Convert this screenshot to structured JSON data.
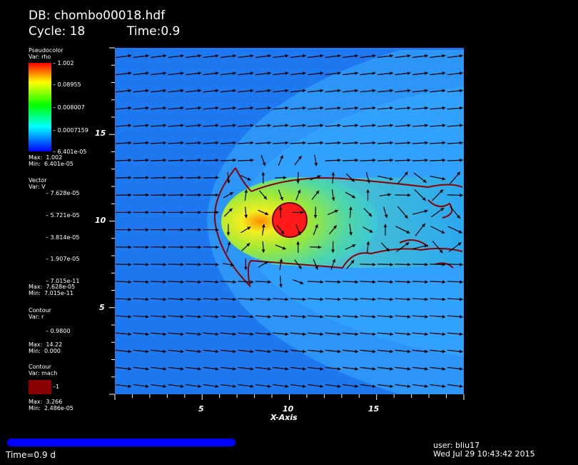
{
  "header": {
    "db_line": "DB: chombo00018.hdf",
    "cycle_label": "Cycle: 18",
    "time_label": "Time:0.9"
  },
  "legend_pseudocolor": {
    "title": "Pseudocolor",
    "var": "Var: rho",
    "ticks": [
      "1.002",
      "0.08955",
      "0.008007",
      "0.0007159",
      "6.401e-05"
    ],
    "max": "Max:  1.002",
    "min": "Min:  6.401e-05"
  },
  "legend_vector": {
    "title": "Vector",
    "var": "Var: V",
    "ticks": [
      "7.628e-05",
      "5.721e-05",
      "3.814e-05",
      "1.907e-05",
      "7.015e-11"
    ],
    "max": "Max:  7.628e-05",
    "min": "Min:  7.015e-11"
  },
  "legend_contour_r": {
    "title": "Contour",
    "var": "Var: r",
    "level": "0.9800",
    "max": "Max:  14.22",
    "min": "Min:  0.000",
    "color": "#ffffff"
  },
  "legend_contour_mach": {
    "title": "Contour",
    "var": "Var: mach",
    "level": "1",
    "max": "Max:  3.266",
    "min": "Min:  2.486e-05",
    "color": "#8b0000"
  },
  "axes": {
    "xlabel": "X-Axis",
    "xticks": [
      "5",
      "10",
      "15"
    ],
    "yticks": [
      "15",
      "10",
      "5"
    ],
    "xlim": [
      0,
      20
    ],
    "ylim": [
      0,
      20
    ]
  },
  "footer": {
    "time": "Time=0.9 d",
    "user": "user: bliu17",
    "date": "Wed Jul 29 10:43:42 2015",
    "progress_fraction": 1.0
  },
  "colors": {
    "background": "#000000",
    "field": "#1e78f0",
    "bow_shock": "#3ab4ff",
    "wake": "#6cd0a0",
    "core": "#ff1a1a",
    "mach_contour": "#8b0000",
    "arrow": "#000000"
  }
}
